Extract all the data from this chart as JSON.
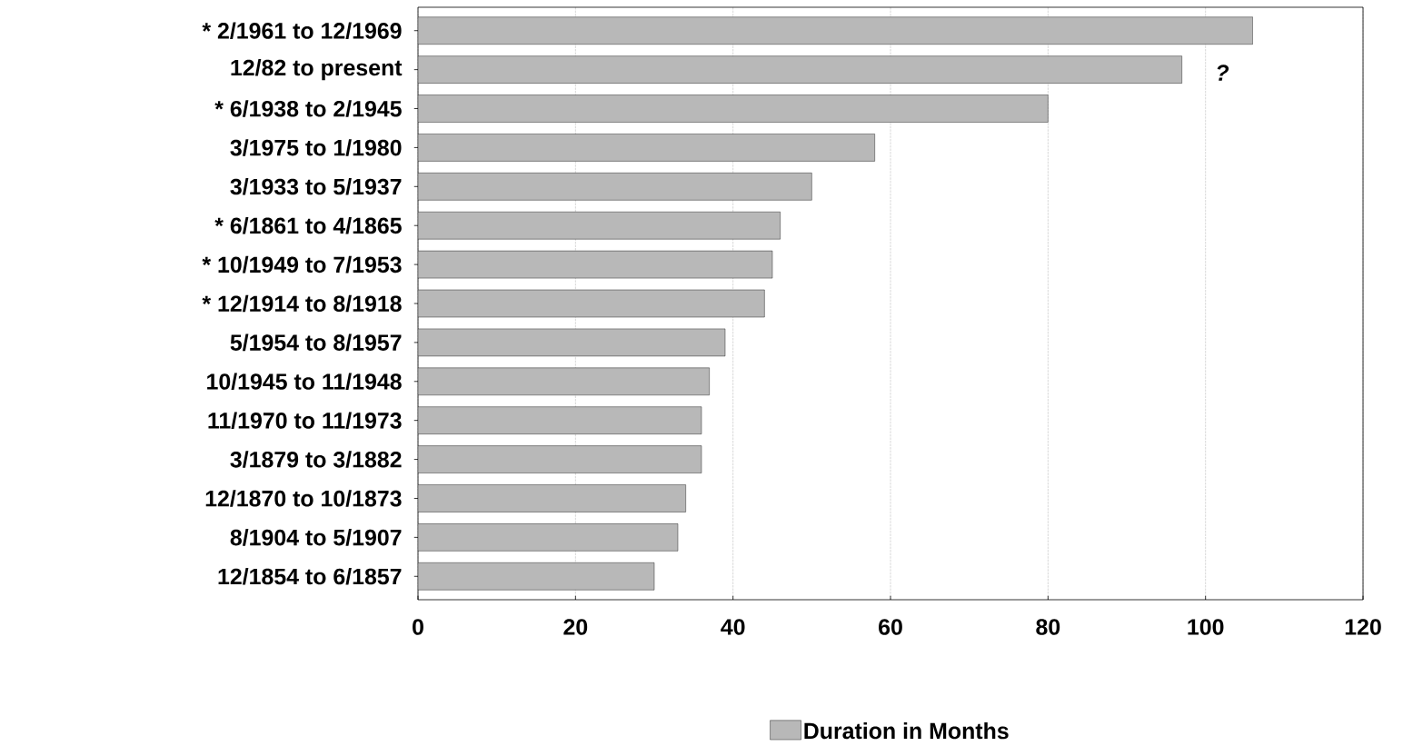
{
  "chart_data": {
    "type": "bar",
    "orientation": "horizontal",
    "categories": [
      "* 2/1961 to 12/1969",
      "12/82 to present",
      "* 6/1938 to 2/1945",
      "3/1975 to 1/1980",
      "3/1933 to 5/1937",
      "* 6/1861 to 4/1865",
      "* 10/1949 to 7/1953",
      "* 12/1914 to 8/1918",
      "5/1954 to 8/1957",
      "10/1945 to 11/1948",
      "11/1970 to 11/1973",
      "3/1879 to 3/1882",
      "12/1870 to 10/1873",
      "8/1904 to 5/1907",
      "12/1854 to 6/1857"
    ],
    "series": [
      {
        "name": "Duration in Months",
        "color": "#b8b8b8",
        "values": [
          106,
          97,
          80,
          58,
          50,
          46,
          45,
          44,
          39,
          37,
          36,
          36,
          34,
          33,
          30
        ]
      }
    ],
    "xlim": [
      0,
      120
    ],
    "xticks": [
      0,
      20,
      40,
      60,
      80,
      100,
      120
    ],
    "grid": "x",
    "legend": "bottom",
    "annotations": [
      "?"
    ]
  }
}
